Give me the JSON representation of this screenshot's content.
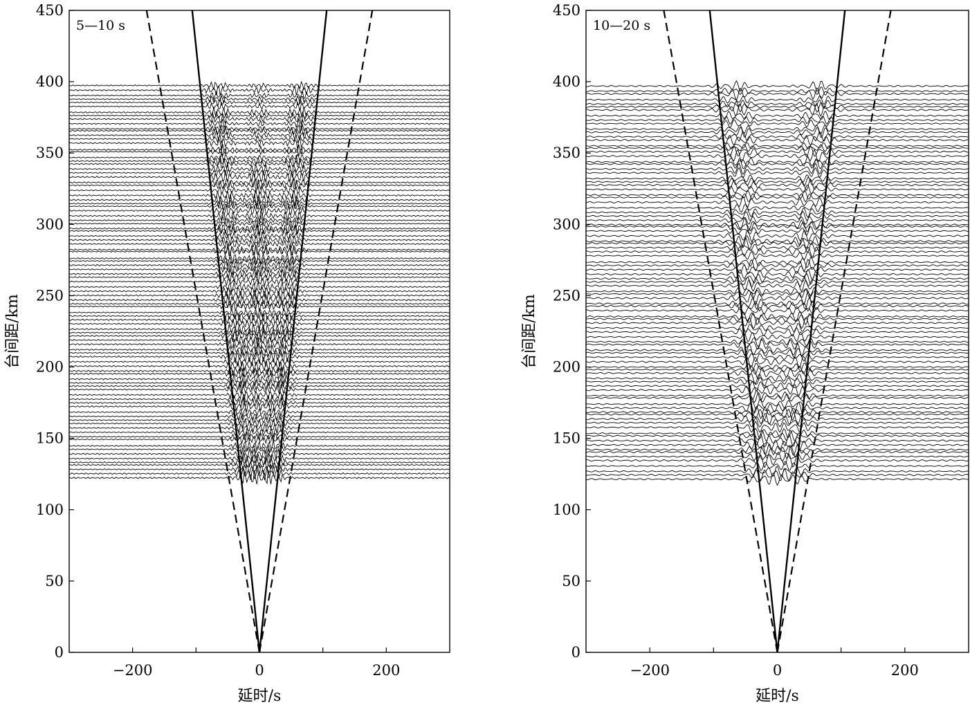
{
  "chart_data": [
    {
      "type": "line",
      "panel_label": "5—10 s",
      "xlabel": "延时/s",
      "ylabel": "台间距/km",
      "xlim": [
        -300,
        300
      ],
      "ylim": [
        0,
        450
      ],
      "xticks": [
        -200,
        0,
        200
      ],
      "xtick_labels": [
        "−200",
        "0",
        "200"
      ],
      "yticks": [
        0,
        50,
        100,
        150,
        200,
        250,
        300,
        350,
        400,
        450
      ],
      "ytick_labels": [
        "0",
        "50",
        "100",
        "150",
        "200",
        "250",
        "300",
        "350",
        "400",
        "450"
      ],
      "grid": false,
      "legend": "none",
      "reference_lines": [
        {
          "style": "solid",
          "points": [
            [
              0,
              0
            ],
            [
              -106,
              450
            ]
          ]
        },
        {
          "style": "solid",
          "points": [
            [
              0,
              0
            ],
            [
              106,
              450
            ]
          ]
        },
        {
          "style": "dashed",
          "points": [
            [
              0,
              0
            ],
            [
              -178,
              450
            ]
          ]
        },
        {
          "style": "dashed",
          "points": [
            [
              0,
              0
            ],
            [
              178,
              450
            ]
          ]
        }
      ],
      "traces": {
        "distance_range_km": [
          122,
          397
        ],
        "count": 95,
        "period_band_s": [
          5,
          10
        ],
        "signal_windows_lag_s": [
          [
            -120,
            -30
          ],
          [
            -20,
            20
          ],
          [
            30,
            120
          ]
        ]
      }
    },
    {
      "type": "line",
      "panel_label": "10—20 s",
      "xlabel": "延时/s",
      "ylabel": "台间距/km",
      "xlim": [
        -300,
        300
      ],
      "ylim": [
        0,
        450
      ],
      "xticks": [
        -200,
        0,
        200
      ],
      "xtick_labels": [
        "−200",
        "0",
        "200"
      ],
      "yticks": [
        0,
        50,
        100,
        150,
        200,
        250,
        300,
        350,
        400,
        450
      ],
      "ytick_labels": [
        "0",
        "50",
        "100",
        "150",
        "200",
        "250",
        "300",
        "350",
        "400",
        "450"
      ],
      "grid": false,
      "legend": "none",
      "reference_lines": [
        {
          "style": "solid",
          "points": [
            [
              0,
              0
            ],
            [
              -106,
              450
            ]
          ]
        },
        {
          "style": "solid",
          "points": [
            [
              0,
              0
            ],
            [
              106,
              450
            ]
          ]
        },
        {
          "style": "dashed",
          "points": [
            [
              0,
              0
            ],
            [
              -178,
              450
            ]
          ]
        },
        {
          "style": "dashed",
          "points": [
            [
              0,
              0
            ],
            [
              178,
              450
            ]
          ]
        }
      ],
      "traces": {
        "distance_range_km": [
          122,
          397
        ],
        "count": 95,
        "period_band_s": [
          10,
          20
        ],
        "signal_windows_lag_s": [
          [
            -150,
            -40
          ],
          [
            40,
            150
          ]
        ]
      }
    }
  ]
}
